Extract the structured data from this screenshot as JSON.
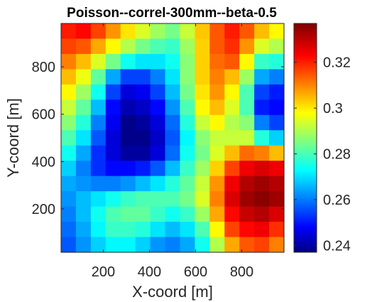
{
  "chart_data": {
    "type": "heatmap",
    "title": "Poisson--correl-300mm--beta-0.5",
    "xlabel": "X-coord [m]",
    "ylabel": "Y-coord [m]",
    "xlim": [
      17,
      983
    ],
    "ylim": [
      17,
      983
    ],
    "xticks": [
      200,
      400,
      600,
      800
    ],
    "yticks": [
      200,
      400,
      600,
      800
    ],
    "grid_x_centers": [
      33,
      100,
      167,
      233,
      300,
      367,
      433,
      500,
      567,
      633,
      700,
      767,
      833,
      900,
      967
    ],
    "grid_y_centers": [
      967,
      900,
      833,
      767,
      700,
      633,
      567,
      500,
      433,
      367,
      300,
      233,
      167,
      100,
      33
    ],
    "colormap": "jet",
    "clim": [
      0.237,
      0.337
    ],
    "colorbar_ticks": [
      0.24,
      0.26,
      0.28,
      0.3,
      0.32
    ],
    "colorbar_tick_labels": [
      "0.24",
      "0.26",
      "0.28",
      "0.3",
      "0.32"
    ],
    "values": [
      [
        0.322,
        0.324,
        0.318,
        0.31,
        0.302,
        0.296,
        0.29,
        0.286,
        0.294,
        0.305,
        0.316,
        0.322,
        0.316,
        0.306,
        0.3
      ],
      [
        0.318,
        0.316,
        0.308,
        0.3,
        0.292,
        0.286,
        0.282,
        0.28,
        0.29,
        0.304,
        0.316,
        0.32,
        0.31,
        0.296,
        0.292
      ],
      [
        0.312,
        0.306,
        0.296,
        0.286,
        0.276,
        0.272,
        0.272,
        0.276,
        0.288,
        0.304,
        0.314,
        0.316,
        0.3,
        0.28,
        0.278
      ],
      [
        0.306,
        0.298,
        0.284,
        0.266,
        0.256,
        0.256,
        0.262,
        0.272,
        0.288,
        0.304,
        0.312,
        0.306,
        0.29,
        0.266,
        0.262
      ],
      [
        0.3,
        0.29,
        0.276,
        0.256,
        0.246,
        0.248,
        0.256,
        0.268,
        0.286,
        0.302,
        0.31,
        0.3,
        0.282,
        0.256,
        0.252
      ],
      [
        0.294,
        0.284,
        0.268,
        0.25,
        0.242,
        0.244,
        0.25,
        0.264,
        0.282,
        0.3,
        0.306,
        0.296,
        0.282,
        0.252,
        0.25
      ],
      [
        0.288,
        0.278,
        0.262,
        0.248,
        0.238,
        0.24,
        0.246,
        0.26,
        0.278,
        0.294,
        0.3,
        0.292,
        0.288,
        0.262,
        0.256
      ],
      [
        0.282,
        0.272,
        0.258,
        0.246,
        0.238,
        0.238,
        0.244,
        0.258,
        0.274,
        0.288,
        0.294,
        0.294,
        0.294,
        0.278,
        0.27
      ],
      [
        0.276,
        0.266,
        0.254,
        0.246,
        0.24,
        0.24,
        0.246,
        0.26,
        0.276,
        0.286,
        0.296,
        0.306,
        0.314,
        0.312,
        0.306
      ],
      [
        0.27,
        0.262,
        0.254,
        0.25,
        0.25,
        0.252,
        0.258,
        0.268,
        0.28,
        0.29,
        0.304,
        0.318,
        0.326,
        0.328,
        0.326
      ],
      [
        0.266,
        0.264,
        0.262,
        0.262,
        0.264,
        0.268,
        0.272,
        0.278,
        0.284,
        0.294,
        0.31,
        0.326,
        0.332,
        0.334,
        0.332
      ],
      [
        0.264,
        0.268,
        0.272,
        0.276,
        0.28,
        0.282,
        0.282,
        0.282,
        0.286,
        0.296,
        0.312,
        0.328,
        0.334,
        0.336,
        0.334
      ],
      [
        0.262,
        0.268,
        0.276,
        0.282,
        0.284,
        0.284,
        0.28,
        0.276,
        0.28,
        0.29,
        0.308,
        0.324,
        0.33,
        0.332,
        0.328
      ],
      [
        0.26,
        0.266,
        0.274,
        0.28,
        0.28,
        0.278,
        0.272,
        0.268,
        0.272,
        0.282,
        0.3,
        0.318,
        0.324,
        0.326,
        0.32
      ],
      [
        0.258,
        0.264,
        0.27,
        0.274,
        0.274,
        0.27,
        0.264,
        0.262,
        0.266,
        0.276,
        0.292,
        0.308,
        0.316,
        0.318,
        0.312
      ]
    ]
  }
}
